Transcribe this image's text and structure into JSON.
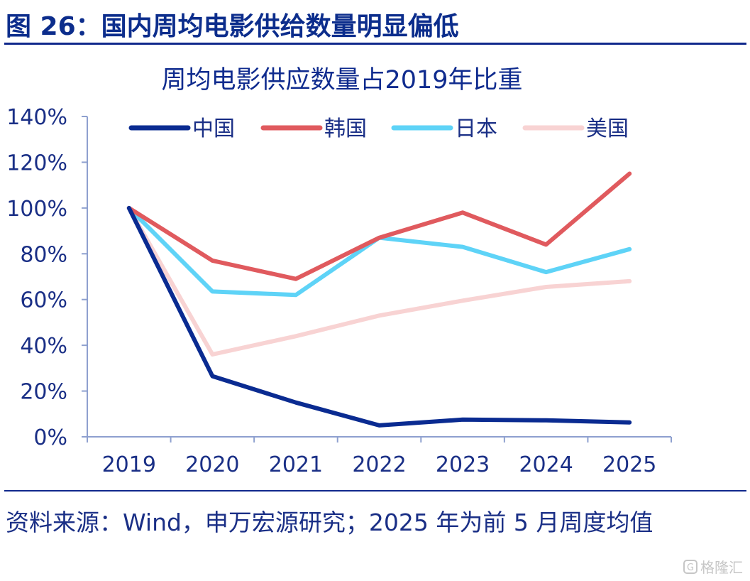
{
  "figure": {
    "title": "图 26：国内周均电影供给数量明显偏低",
    "source": "资料来源：Wind，申万宏源研究；2025 年为前 5 月周度均值",
    "watermark": "格隆汇",
    "watermark_icon": "g-logo-icon"
  },
  "chart_data": {
    "type": "line",
    "title": "周均电影供应数量占2019年比重",
    "xlabel": "",
    "ylabel": "",
    "x": [
      "2019",
      "2020",
      "2021",
      "2022",
      "2023",
      "2024",
      "2025"
    ],
    "ylim": [
      0,
      140
    ],
    "yticks": [
      "0%",
      "20%",
      "40%",
      "60%",
      "80%",
      "100%",
      "120%",
      "140%"
    ],
    "grid": false,
    "legend_position": "top",
    "series": [
      {
        "name": "中国",
        "color": "#0a2b91",
        "values": [
          100,
          26.5,
          15,
          5,
          7.5,
          7.2,
          6.3
        ]
      },
      {
        "name": "韩国",
        "color": "#e05a5e",
        "values": [
          100,
          77,
          69,
          87,
          98,
          84,
          115
        ]
      },
      {
        "name": "日本",
        "color": "#5ed3f7",
        "values": [
          100,
          63.5,
          62,
          87,
          83,
          72,
          82
        ]
      },
      {
        "name": "美国",
        "color": "#f8d3d3",
        "values": [
          100,
          36,
          44,
          53,
          59.5,
          65.5,
          68
        ]
      }
    ]
  }
}
